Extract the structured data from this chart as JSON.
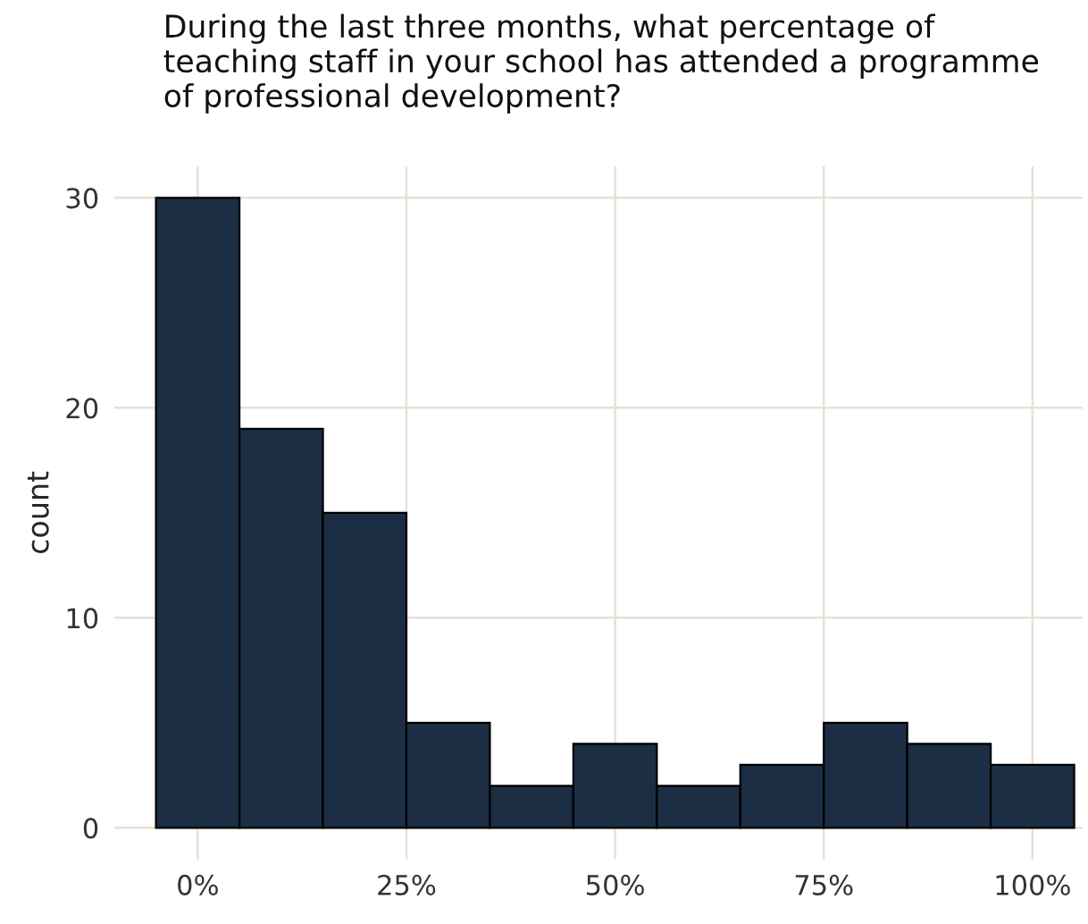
{
  "chart_data": {
    "type": "histogram",
    "title": "During the last three months, what percentage of\nteaching staff in your school has attended a programme\nof professional development?",
    "ylabel": "count",
    "bins": [
      -5,
      5,
      15,
      25,
      35,
      45,
      55,
      65,
      75,
      85,
      95,
      105
    ],
    "values": [
      30,
      19,
      15,
      5,
      2,
      4,
      2,
      3,
      5,
      4,
      3
    ],
    "color": "#1b2e44",
    "xlim": [
      -10,
      106
    ],
    "ylim": [
      -1.5,
      31.5
    ],
    "xticks": [
      {
        "value": 0,
        "label": "0%"
      },
      {
        "value": 25,
        "label": "25%"
      },
      {
        "value": 50,
        "label": "50%"
      },
      {
        "value": 75,
        "label": "75%"
      },
      {
        "value": 100,
        "label": "100%"
      }
    ],
    "yticks": [
      0,
      10,
      20,
      30
    ],
    "grid": true
  }
}
